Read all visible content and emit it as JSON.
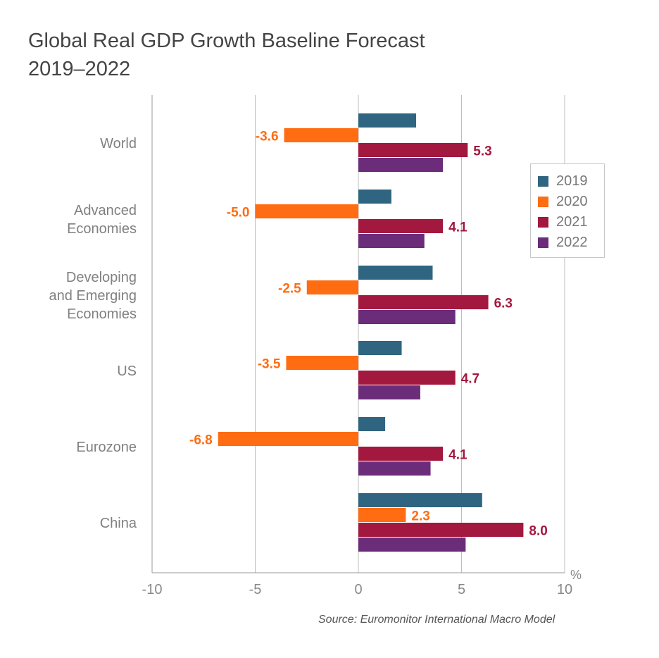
{
  "title_line1": "Global Real GDP Growth Baseline Forecast",
  "title_line2": "2019–2022",
  "source": "Source: Euromonitor International Macro Model",
  "chart_data": {
    "type": "bar",
    "orientation": "horizontal",
    "categories": [
      [
        "World"
      ],
      [
        "Advanced",
        "Economies"
      ],
      [
        "Developing",
        "and Emerging",
        "Economies"
      ],
      [
        "US"
      ],
      [
        "Eurozone"
      ],
      [
        "China"
      ]
    ],
    "series": [
      {
        "name": "2019",
        "color": "#2f6580",
        "values": [
          2.8,
          1.6,
          3.6,
          2.1,
          1.3,
          6.0
        ]
      },
      {
        "name": "2020",
        "color": "#ff6c11",
        "values": [
          -3.6,
          -5.0,
          -2.5,
          -3.5,
          -6.8,
          2.3
        ]
      },
      {
        "name": "2021",
        "color": "#a3183e",
        "values": [
          5.3,
          4.1,
          6.3,
          4.7,
          4.1,
          8.0
        ]
      },
      {
        "name": "2022",
        "color": "#6b2c7a",
        "values": [
          4.1,
          3.2,
          4.7,
          3.0,
          3.5,
          5.2
        ]
      }
    ],
    "labeled_series": [
      1,
      2
    ],
    "data_labels": {
      "2020": [
        "-3.6",
        "-5.0",
        "-2.5",
        "-3.5",
        "-6.8",
        "2.3"
      ],
      "2021": [
        "5.3",
        "4.1",
        "6.3",
        "4.7",
        "4.1",
        "8.0"
      ]
    },
    "x_ticks": [
      "-10",
      "-5",
      "0",
      "5",
      "10"
    ],
    "x_tick_values": [
      -10,
      -5,
      0,
      5,
      10
    ],
    "xlim": [
      -10,
      10
    ],
    "x_unit": "%",
    "grid": "vertical",
    "legend_position": "right"
  }
}
